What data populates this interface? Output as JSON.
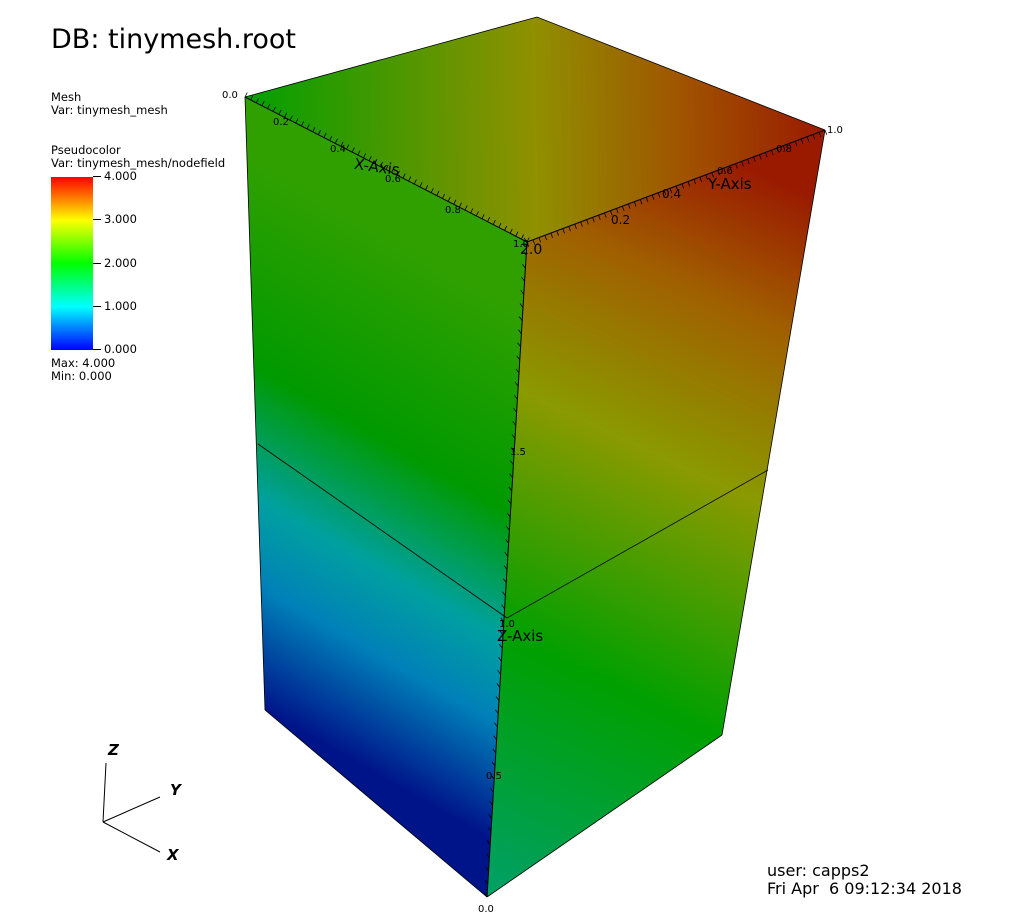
{
  "title": "DB: tinymesh.root",
  "plots": [
    {
      "kind": "Mesh",
      "var": "Var: tinymesh_mesh"
    },
    {
      "kind": "Pseudocolor",
      "var": "Var: tinymesh_mesh/nodefield"
    }
  ],
  "legend": {
    "ticks": [
      "4.000",
      "3.000",
      "2.000",
      "1.000",
      "0.000"
    ],
    "max": "Max:  4.000",
    "min": "Min:  0.000",
    "colors": [
      "#0000ff",
      "#00ffff",
      "#00ff00",
      "#ffff00",
      "#ff0000"
    ]
  },
  "axes": {
    "x_title": "X-Axis",
    "y_title": "Y-Axis",
    "z_title": "Z-Axis",
    "x_ticks": [
      "0.0",
      "0.2",
      "0.4",
      "0.6",
      "0.8",
      "1.0"
    ],
    "y_ticks": [
      "0.2",
      "0.4",
      "0.6",
      "0.8",
      "1.0"
    ],
    "z_ticks": [
      "0.0",
      "0.5",
      "1.0",
      "1.5",
      "2.0"
    ]
  },
  "triad": {
    "x": "X",
    "y": "Y",
    "z": "Z"
  },
  "footer": {
    "user": "user: capps2",
    "date": "Fri Apr  6 09:12:34 2018"
  }
}
